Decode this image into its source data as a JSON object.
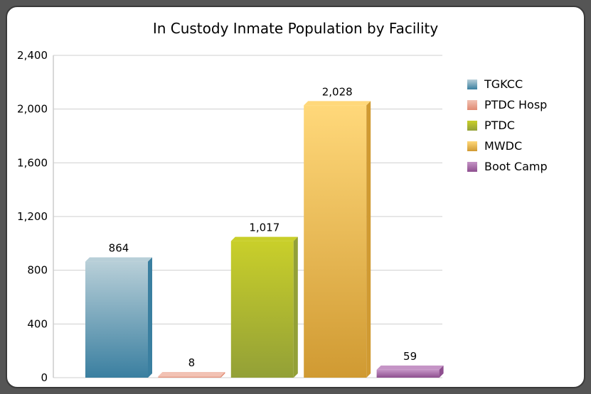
{
  "chart_data": {
    "type": "bar",
    "title": "In Custody Inmate Population by Facility",
    "xlabel": "",
    "ylabel": "",
    "ylim": [
      0,
      2400
    ],
    "yticks": [
      0,
      400,
      800,
      1200,
      1600,
      2000,
      2400
    ],
    "ytick_labels": [
      "0",
      "400",
      "800",
      "1,200",
      "1,600",
      "2,000",
      "2,400"
    ],
    "grid": true,
    "legend_position": "right",
    "series": [
      {
        "name": "TGKCC",
        "value": 864,
        "label": "864",
        "color": "#3a7fa0",
        "color_top": "#b8cfd8"
      },
      {
        "name": "PTDC Hosp",
        "value": 8,
        "label": "8",
        "color": "#e08a72",
        "color_top": "#f2c2b4"
      },
      {
        "name": "PTDC",
        "value": 1017,
        "label": "1,017",
        "color": "#93a037",
        "color_top": "#c9cf2a"
      },
      {
        "name": "MWDC",
        "value": 2028,
        "label": "2,028",
        "color": "#d09a32",
        "color_top": "#ffd87a"
      },
      {
        "name": "Boot Camp",
        "value": 59,
        "label": "59",
        "color": "#8e4f8f",
        "color_top": "#c594c6"
      }
    ]
  }
}
